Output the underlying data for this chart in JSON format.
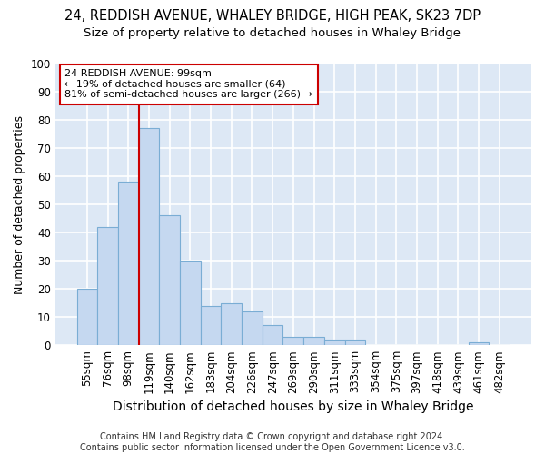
{
  "title1": "24, REDDISH AVENUE, WHALEY BRIDGE, HIGH PEAK, SK23 7DP",
  "title2": "Size of property relative to detached houses in Whaley Bridge",
  "xlabel": "Distribution of detached houses by size in Whaley Bridge",
  "ylabel": "Number of detached properties",
  "categories": [
    "55sqm",
    "76sqm",
    "98sqm",
    "119sqm",
    "140sqm",
    "162sqm",
    "183sqm",
    "204sqm",
    "226sqm",
    "247sqm",
    "269sqm",
    "290sqm",
    "311sqm",
    "333sqm",
    "354sqm",
    "375sqm",
    "397sqm",
    "418sqm",
    "439sqm",
    "461sqm",
    "482sqm"
  ],
  "values": [
    20,
    42,
    58,
    77,
    46,
    30,
    14,
    15,
    12,
    7,
    3,
    3,
    2,
    2,
    0,
    0,
    0,
    0,
    0,
    1,
    0
  ],
  "bar_color": "#c5d8f0",
  "bar_edge_color": "#7aadd4",
  "vline_color": "#cc0000",
  "annotation_text": "24 REDDISH AVENUE: 99sqm\n← 19% of detached houses are smaller (64)\n81% of semi-detached houses are larger (266) →",
  "annotation_box_color": "#ffffff",
  "annotation_box_edge": "#cc0000",
  "footer": "Contains HM Land Registry data © Crown copyright and database right 2024.\nContains public sector information licensed under the Open Government Licence v3.0.",
  "ylim": [
    0,
    100
  ],
  "yticks": [
    0,
    10,
    20,
    30,
    40,
    50,
    60,
    70,
    80,
    90,
    100
  ],
  "bg_color": "#dde8f5",
  "grid_color": "#ffffff",
  "fig_bg_color": "#ffffff",
  "title1_fontsize": 10.5,
  "title2_fontsize": 9.5,
  "xlabel_fontsize": 10,
  "ylabel_fontsize": 9,
  "tick_fontsize": 8.5,
  "annot_fontsize": 8,
  "footer_fontsize": 7
}
